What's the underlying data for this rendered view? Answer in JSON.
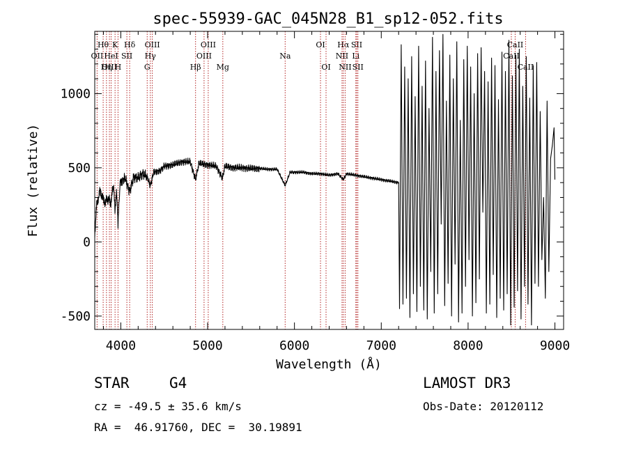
{
  "chart_data": {
    "type": "line",
    "title": "spec-55939-GAC_045N28_B1_sp12-052.fits",
    "xlabel": "Wavelength (Å)",
    "ylabel": "Flux (relative)",
    "xlim": [
      3700,
      9100
    ],
    "ylim": [
      -590,
      1420
    ],
    "xticks": [
      4000,
      5000,
      6000,
      7000,
      8000,
      9000
    ],
    "yticks": [
      -500,
      0,
      500,
      1000
    ],
    "series": [
      {
        "name": "spectrum",
        "smooth": {
          "x": [
            3700,
            3720,
            3740,
            3760,
            3780,
            3800,
            3820,
            3840,
            3860,
            3880,
            3900,
            3920,
            3933,
            3950,
            3968,
            3990,
            4010,
            4050,
            4102,
            4150,
            4200,
            4250,
            4300,
            4340,
            4380,
            4450,
            4500,
            4600,
            4700,
            4800,
            4861,
            4900,
            5000,
            5100,
            5170,
            5200,
            5300,
            5400,
            5500,
            5600,
            5700,
            5800,
            5893,
            5950,
            6000,
            6100,
            6200,
            6300,
            6400,
            6500,
            6563,
            6600,
            6700,
            6800,
            6900,
            7000,
            7100,
            7200
          ],
          "y": [
            60,
            230,
            300,
            340,
            320,
            280,
            270,
            280,
            300,
            250,
            330,
            370,
            210,
            350,
            130,
            380,
            410,
            430,
            340,
            440,
            430,
            460,
            440,
            380,
            470,
            480,
            510,
            520,
            540,
            540,
            420,
            530,
            520,
            510,
            430,
            510,
            500,
            500,
            495,
            495,
            490,
            490,
            380,
            470,
            470,
            470,
            460,
            460,
            450,
            460,
            420,
            460,
            450,
            440,
            430,
            420,
            410,
            400
          ]
        },
        "noisy": {
          "x": [
            7210,
            7230,
            7250,
            7270,
            7290,
            7310,
            7330,
            7350,
            7370,
            7390,
            7410,
            7430,
            7450,
            7470,
            7490,
            7510,
            7530,
            7550,
            7570,
            7590,
            7610,
            7630,
            7650,
            7670,
            7690,
            7710,
            7730,
            7750,
            7770,
            7790,
            7810,
            7830,
            7850,
            7870,
            7890,
            7910,
            7930,
            7950,
            7970,
            7990,
            8010,
            8030,
            8050,
            8070,
            8090,
            8110,
            8130,
            8150,
            8170,
            8190,
            8210,
            8230,
            8250,
            8270,
            8290,
            8310,
            8330,
            8350,
            8370,
            8390,
            8410,
            8430,
            8450,
            8470,
            8490,
            8510,
            8530,
            8550,
            8570,
            8590,
            8610,
            8630,
            8650,
            8670,
            8690,
            8710,
            8730,
            8750,
            8770,
            8790,
            8810,
            8830,
            8850,
            8870,
            8890,
            8910,
            8930,
            8950,
            8970,
            8990,
            9000
          ],
          "y": [
            -450,
            1330,
            -420,
            1180,
            -380,
            1100,
            -510,
            1250,
            -350,
            980,
            -470,
            1320,
            -300,
            1050,
            -460,
            1220,
            -520,
            900,
            -200,
            1380,
            -480,
            1150,
            -350,
            1290,
            120,
            1400,
            -430,
            950,
            -280,
            1260,
            -500,
            1100,
            -150,
            1350,
            -540,
            820,
            -480,
            1230,
            -300,
            1320,
            -120,
            1180,
            -500,
            1000,
            -410,
            1270,
            -250,
            1310,
            200,
            1150,
            -480,
            1080,
            -420,
            1240,
            -220,
            1190,
            -510,
            960,
            -380,
            1280,
            -460,
            1150,
            -350,
            1360,
            -560,
            1120,
            -440,
            1260,
            -330,
            1300,
            -520,
            1050,
            -300,
            1250,
            -420,
            970,
            -560,
            1190,
            -280,
            1210,
            -300,
            880,
            -120,
            300,
            -380,
            950,
            -200,
            560,
            650,
            770,
            420
          ]
        }
      }
    ],
    "lines": [
      {
        "label": "Hθ",
        "x": 3797,
        "row": 1
      },
      {
        "label": "OII",
        "x": 3727,
        "row": 2
      },
      {
        "label": "OIII",
        "x": 3869,
        "row": 3
      },
      {
        "label": "K",
        "x": 3934,
        "row": 1
      },
      {
        "label": "HeI",
        "x": 3889,
        "row": 2
      },
      {
        "label": "Hη",
        "x": 3835,
        "row": 3
      },
      {
        "label": "Hδ",
        "x": 4102,
        "row": 1
      },
      {
        "label": "SII",
        "x": 4070,
        "row": 2
      },
      {
        "label": "H",
        "x": 3968,
        "row": 3
      },
      {
        "label": "OIII",
        "x": 4363,
        "row": 1
      },
      {
        "label": "Hγ",
        "x": 4340,
        "row": 2
      },
      {
        "label": "G",
        "x": 4304,
        "row": 3
      },
      {
        "label": "OIII",
        "x": 5007,
        "row": 1
      },
      {
        "label": "OIII",
        "x": 4959,
        "row": 2
      },
      {
        "label": "Hβ",
        "x": 4861,
        "row": 3
      },
      {
        "label": "Mg",
        "x": 5175,
        "row": 3
      },
      {
        "label": "Na",
        "x": 5893,
        "row": 2
      },
      {
        "label": "OI",
        "x": 6300,
        "row": 1
      },
      {
        "label": "OI",
        "x": 6364,
        "row": 3
      },
      {
        "label": "Hα",
        "x": 6563,
        "row": 1
      },
      {
        "label": "NII",
        "x": 6548,
        "row": 2
      },
      {
        "label": "NII",
        "x": 6584,
        "row": 3
      },
      {
        "label": "SII",
        "x": 6717,
        "row": 1
      },
      {
        "label": "Li",
        "x": 6707,
        "row": 2
      },
      {
        "label": "SII",
        "x": 6731,
        "row": 3
      },
      {
        "label": "CaII",
        "x": 8542,
        "row": 1
      },
      {
        "label": "CaII",
        "x": 8498,
        "row": 2
      },
      {
        "label": "CaII",
        "x": 8662,
        "row": 3
      }
    ]
  },
  "info": {
    "class_label": "STAR",
    "subclass_label": "G4",
    "survey_label": "LAMOST DR3",
    "cz_text": "cz = -49.5 ± 35.6 km/s",
    "obsdate_text": "Obs-Date: 20120112",
    "radec_text": "RA =  46.91760, DEC =  30.19891"
  },
  "colors": {
    "spectrum": "#000000",
    "line_marker": "#b22222",
    "axis": "#000000"
  }
}
